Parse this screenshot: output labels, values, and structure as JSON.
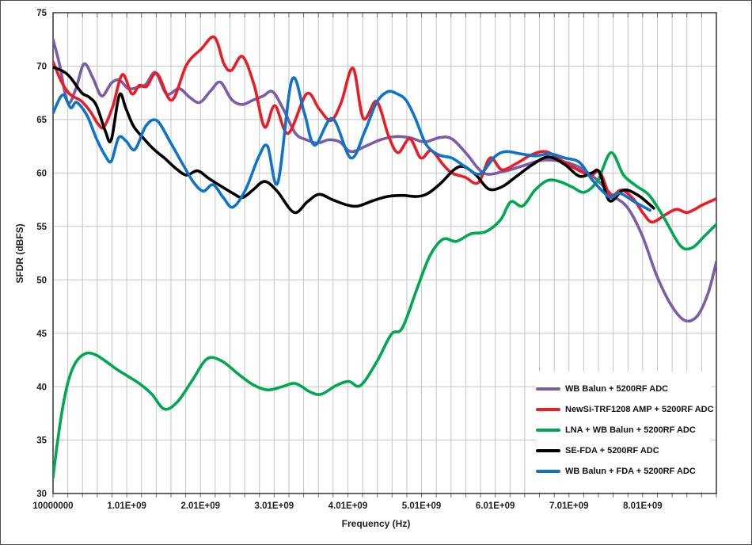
{
  "window": {
    "background": "#ffffff",
    "border_color": "#4d4d4d"
  },
  "chart_data": {
    "type": "line",
    "title": "",
    "x_axis": {
      "title": "Frequency (Hz)",
      "tick_labels": [
        "10000000",
        "1.01E+09",
        "2.01E+09",
        "3.01E+09",
        "4.01E+09",
        "5.01E+09",
        "6.01E+09",
        "7.01E+09",
        "8.01E+09"
      ],
      "tick_values_ghz": [
        0.01,
        1.01,
        2.01,
        3.01,
        4.01,
        5.01,
        6.01,
        7.01,
        8.01
      ],
      "min_ghz": 0.01,
      "max_ghz": 9.01,
      "minor_gridline_step_ghz": 0.2
    },
    "y_axis": {
      "title": "SFDR (dBFS)",
      "tick_values": [
        75,
        70,
        65,
        60,
        55,
        50,
        45,
        40,
        35,
        30
      ],
      "min": 30,
      "max": 75,
      "gridline_step": 5
    },
    "grid": {
      "color": "#c5c5c5",
      "tick_color": "#707070",
      "axis_color": "#262626",
      "text_color": "#1f1f1f"
    },
    "legend_position": "inside-bottom-right",
    "series": [
      {
        "name": "WB Balun + 5200RF ADC",
        "color": "#7A5CA8",
        "points": [
          [
            0.01,
            72.5
          ],
          [
            0.1,
            70.1
          ],
          [
            0.21,
            66.6
          ],
          [
            0.32,
            67.9
          ],
          [
            0.43,
            70.2
          ],
          [
            0.55,
            68.9
          ],
          [
            0.67,
            67.2
          ],
          [
            0.8,
            68.4
          ],
          [
            0.91,
            68.7
          ],
          [
            1.03,
            67.9
          ],
          [
            1.15,
            68.0
          ],
          [
            1.27,
            68.3
          ],
          [
            1.4,
            69.4
          ],
          [
            1.55,
            67.4
          ],
          [
            1.72,
            67.9
          ],
          [
            1.86,
            67.1
          ],
          [
            2.0,
            66.6
          ],
          [
            2.15,
            67.7
          ],
          [
            2.28,
            68.5
          ],
          [
            2.43,
            66.9
          ],
          [
            2.57,
            66.4
          ],
          [
            2.72,
            66.8
          ],
          [
            2.86,
            67.2
          ],
          [
            2.99,
            67.6
          ],
          [
            3.14,
            65.9
          ],
          [
            3.3,
            63.7
          ],
          [
            3.45,
            63.1
          ],
          [
            3.6,
            62.8
          ],
          [
            3.75,
            63.1
          ],
          [
            3.9,
            62.9
          ],
          [
            4.05,
            62.0
          ],
          [
            4.25,
            62.5
          ],
          [
            4.45,
            63.1
          ],
          [
            4.65,
            63.4
          ],
          [
            4.85,
            63.3
          ],
          [
            5.05,
            62.9
          ],
          [
            5.25,
            63.3
          ],
          [
            5.42,
            63.2
          ],
          [
            5.62,
            61.8
          ],
          [
            5.85,
            60.0
          ],
          [
            6.1,
            60.1
          ],
          [
            6.4,
            60.7
          ],
          [
            6.65,
            61.2
          ],
          [
            6.9,
            61.1
          ],
          [
            7.1,
            60.7
          ],
          [
            7.25,
            60.1
          ],
          [
            7.4,
            59.3
          ],
          [
            7.6,
            57.9
          ],
          [
            7.8,
            56.8
          ],
          [
            8.0,
            54.2
          ],
          [
            8.2,
            50.4
          ],
          [
            8.4,
            47.6
          ],
          [
            8.58,
            46.2
          ],
          [
            8.75,
            46.6
          ],
          [
            8.9,
            48.8
          ],
          [
            9.01,
            51.7
          ]
        ]
      },
      {
        "name": "NewSi-TRF1208 AMP + 5200RF ADC",
        "color": "#EC1C24",
        "points": [
          [
            0.01,
            70.4
          ],
          [
            0.12,
            68.6
          ],
          [
            0.22,
            67.5
          ],
          [
            0.3,
            67.1
          ],
          [
            0.4,
            66.7
          ],
          [
            0.52,
            65.7
          ],
          [
            0.62,
            64.6
          ],
          [
            0.7,
            64.3
          ],
          [
            0.82,
            66.2
          ],
          [
            0.95,
            69.2
          ],
          [
            1.08,
            67.4
          ],
          [
            1.18,
            68.2
          ],
          [
            1.28,
            68.1
          ],
          [
            1.42,
            69.3
          ],
          [
            1.62,
            66.8
          ],
          [
            1.82,
            70.1
          ],
          [
            2.02,
            71.6
          ],
          [
            2.2,
            72.7
          ],
          [
            2.33,
            70.2
          ],
          [
            2.43,
            69.6
          ],
          [
            2.58,
            70.9
          ],
          [
            2.74,
            68.2
          ],
          [
            2.88,
            64.3
          ],
          [
            3.02,
            66.3
          ],
          [
            3.2,
            63.7
          ],
          [
            3.45,
            67.4
          ],
          [
            3.62,
            66.0
          ],
          [
            3.78,
            64.9
          ],
          [
            3.92,
            66.6
          ],
          [
            4.08,
            69.8
          ],
          [
            4.22,
            65.1
          ],
          [
            4.4,
            66.7
          ],
          [
            4.56,
            63.5
          ],
          [
            4.69,
            61.9
          ],
          [
            4.85,
            63.2
          ],
          [
            5.0,
            61.4
          ],
          [
            5.14,
            62.1
          ],
          [
            5.3,
            60.8
          ],
          [
            5.42,
            60.0
          ],
          [
            5.6,
            59.6
          ],
          [
            5.78,
            59.1
          ],
          [
            5.94,
            61.4
          ],
          [
            6.1,
            60.3
          ],
          [
            6.3,
            60.9
          ],
          [
            6.5,
            61.7
          ],
          [
            6.7,
            62.0
          ],
          [
            6.9,
            61.2
          ],
          [
            7.1,
            60.4
          ],
          [
            7.3,
            59.8
          ],
          [
            7.43,
            60.1
          ],
          [
            7.57,
            57.9
          ],
          [
            7.72,
            58.4
          ],
          [
            7.88,
            57.6
          ],
          [
            8.02,
            56.2
          ],
          [
            8.14,
            55.4
          ],
          [
            8.32,
            56.1
          ],
          [
            8.47,
            56.6
          ],
          [
            8.62,
            56.3
          ],
          [
            8.82,
            57.0
          ],
          [
            9.01,
            57.6
          ]
        ]
      },
      {
        "name": "LNA + WB Balun + 5200RF ADC",
        "color": "#00A84F",
        "points": [
          [
            0.01,
            31.5
          ],
          [
            0.07,
            34.8
          ],
          [
            0.14,
            38.0
          ],
          [
            0.22,
            40.6
          ],
          [
            0.32,
            42.3
          ],
          [
            0.45,
            43.1
          ],
          [
            0.58,
            43.0
          ],
          [
            0.72,
            42.4
          ],
          [
            0.88,
            41.6
          ],
          [
            1.02,
            41.0
          ],
          [
            1.18,
            40.3
          ],
          [
            1.35,
            39.3
          ],
          [
            1.52,
            37.9
          ],
          [
            1.7,
            38.6
          ],
          [
            1.9,
            40.6
          ],
          [
            2.1,
            42.6
          ],
          [
            2.3,
            42.4
          ],
          [
            2.52,
            41.2
          ],
          [
            2.72,
            40.2
          ],
          [
            2.92,
            39.7
          ],
          [
            3.12,
            40.0
          ],
          [
            3.3,
            40.3
          ],
          [
            3.5,
            39.5
          ],
          [
            3.65,
            39.3
          ],
          [
            3.85,
            40.1
          ],
          [
            4.02,
            40.5
          ],
          [
            4.18,
            40.1
          ],
          [
            4.4,
            42.3
          ],
          [
            4.6,
            44.9
          ],
          [
            4.75,
            45.5
          ],
          [
            4.95,
            49.2
          ],
          [
            5.12,
            52.2
          ],
          [
            5.3,
            53.8
          ],
          [
            5.48,
            53.6
          ],
          [
            5.68,
            54.3
          ],
          [
            5.88,
            54.5
          ],
          [
            6.08,
            55.6
          ],
          [
            6.22,
            57.3
          ],
          [
            6.38,
            56.9
          ],
          [
            6.55,
            58.4
          ],
          [
            6.72,
            59.3
          ],
          [
            6.88,
            59.2
          ],
          [
            7.05,
            58.7
          ],
          [
            7.22,
            58.2
          ],
          [
            7.4,
            59.3
          ],
          [
            7.58,
            61.9
          ],
          [
            7.75,
            59.8
          ],
          [
            7.92,
            58.8
          ],
          [
            8.1,
            57.9
          ],
          [
            8.3,
            55.8
          ],
          [
            8.52,
            53.2
          ],
          [
            8.68,
            53.0
          ],
          [
            8.85,
            54.1
          ],
          [
            9.01,
            55.2
          ]
        ]
      },
      {
        "name": "SE-FDA + 5200RF ADC",
        "color": "#000000",
        "points": [
          [
            0.01,
            69.9
          ],
          [
            0.15,
            69.5
          ],
          [
            0.25,
            68.9
          ],
          [
            0.4,
            67.5
          ],
          [
            0.5,
            67.1
          ],
          [
            0.6,
            66.3
          ],
          [
            0.72,
            63.9
          ],
          [
            0.8,
            63.1
          ],
          [
            0.91,
            67.3
          ],
          [
            1.0,
            66.0
          ],
          [
            1.1,
            64.4
          ],
          [
            1.23,
            63.3
          ],
          [
            1.38,
            62.2
          ],
          [
            1.52,
            61.4
          ],
          [
            1.68,
            60.4
          ],
          [
            1.82,
            59.8
          ],
          [
            1.97,
            60.2
          ],
          [
            2.12,
            59.5
          ],
          [
            2.28,
            58.8
          ],
          [
            2.45,
            58.1
          ],
          [
            2.58,
            57.7
          ],
          [
            2.72,
            58.4
          ],
          [
            2.88,
            59.2
          ],
          [
            3.05,
            58.3
          ],
          [
            3.28,
            56.3
          ],
          [
            3.46,
            57.3
          ],
          [
            3.62,
            58.0
          ],
          [
            3.8,
            57.5
          ],
          [
            4.0,
            57.0
          ],
          [
            4.15,
            56.9
          ],
          [
            4.35,
            57.4
          ],
          [
            4.55,
            57.8
          ],
          [
            4.75,
            57.9
          ],
          [
            4.95,
            57.8
          ],
          [
            5.1,
            58.1
          ],
          [
            5.28,
            59.1
          ],
          [
            5.45,
            60.3
          ],
          [
            5.58,
            60.6
          ],
          [
            5.75,
            59.8
          ],
          [
            5.92,
            58.5
          ],
          [
            6.1,
            58.7
          ],
          [
            6.3,
            59.7
          ],
          [
            6.52,
            60.8
          ],
          [
            6.73,
            61.5
          ],
          [
            6.95,
            60.8
          ],
          [
            7.15,
            59.7
          ],
          [
            7.32,
            60.0
          ],
          [
            7.42,
            60.1
          ],
          [
            7.56,
            57.4
          ],
          [
            7.75,
            58.4
          ],
          [
            7.95,
            57.9
          ],
          [
            8.16,
            56.7
          ]
        ]
      },
      {
        "name": "WB Balun + FDA + 5200RF ADC",
        "color": "#0D74C9",
        "points": [
          [
            0.01,
            65.6
          ],
          [
            0.14,
            67.3
          ],
          [
            0.25,
            66.1
          ],
          [
            0.33,
            66.6
          ],
          [
            0.47,
            65.4
          ],
          [
            0.6,
            63.2
          ],
          [
            0.72,
            61.6
          ],
          [
            0.8,
            61.1
          ],
          [
            0.9,
            63.3
          ],
          [
            1.0,
            63.0
          ],
          [
            1.12,
            62.2
          ],
          [
            1.27,
            64.4
          ],
          [
            1.42,
            64.9
          ],
          [
            1.6,
            62.9
          ],
          [
            1.78,
            60.7
          ],
          [
            1.92,
            59.1
          ],
          [
            2.05,
            58.3
          ],
          [
            2.18,
            58.9
          ],
          [
            2.32,
            57.7
          ],
          [
            2.45,
            56.8
          ],
          [
            2.62,
            58.4
          ],
          [
            2.8,
            61.5
          ],
          [
            2.92,
            62.5
          ],
          [
            3.06,
            59.1
          ],
          [
            3.25,
            68.7
          ],
          [
            3.42,
            65.6
          ],
          [
            3.56,
            62.6
          ],
          [
            3.8,
            65.1
          ],
          [
            4.05,
            61.4
          ],
          [
            4.24,
            63.9
          ],
          [
            4.4,
            66.6
          ],
          [
            4.55,
            67.6
          ],
          [
            4.68,
            67.4
          ],
          [
            4.8,
            66.8
          ],
          [
            4.92,
            65.2
          ],
          [
            5.07,
            62.7
          ],
          [
            5.24,
            61.7
          ],
          [
            5.42,
            61.4
          ],
          [
            5.6,
            60.6
          ],
          [
            5.8,
            59.9
          ],
          [
            6.0,
            61.5
          ],
          [
            6.15,
            62.0
          ],
          [
            6.35,
            61.8
          ],
          [
            6.55,
            61.6
          ],
          [
            6.75,
            61.8
          ],
          [
            6.95,
            61.4
          ],
          [
            7.15,
            61.0
          ],
          [
            7.32,
            59.4
          ],
          [
            7.45,
            58.4
          ],
          [
            7.58,
            57.7
          ],
          [
            7.7,
            58.1
          ],
          [
            7.9,
            57.3
          ],
          [
            8.11,
            56.5
          ]
        ]
      }
    ]
  }
}
